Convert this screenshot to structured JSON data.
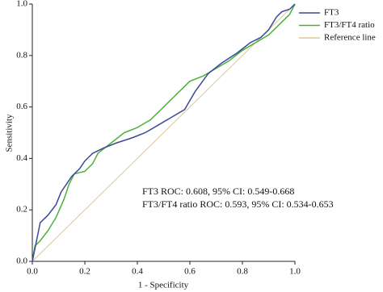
{
  "chart_data": {
    "type": "line",
    "xlabel": "1 - Specificity",
    "ylabel": "Sensitivity",
    "annotations": [
      "FT3 ROC: 0.608, 95% CI: 0.549-0.668",
      "FT3/FT4 ratio ROC: 0.593, 95% CI: 0.534-0.653"
    ],
    "xlim": [
      0,
      1
    ],
    "ylim": [
      0,
      1
    ],
    "xticks": [
      {
        "value": 0,
        "label": "0.0"
      },
      {
        "value": 0.2,
        "label": "0.2"
      },
      {
        "value": 0.4,
        "label": "0.4"
      },
      {
        "value": 0.6,
        "label": "0.6"
      },
      {
        "value": 0.8,
        "label": "0.8"
      },
      {
        "value": 1,
        "label": "1.0"
      }
    ],
    "yticks": [
      {
        "value": 0,
        "label": "0.0"
      },
      {
        "value": 0.2,
        "label": "0.2"
      },
      {
        "value": 0.4,
        "label": "0.4"
      },
      {
        "value": 0.6,
        "label": "0.6"
      },
      {
        "value": 0.8,
        "label": "0.8"
      },
      {
        "value": 1,
        "label": "1.0"
      }
    ],
    "legend": "top-right",
    "series": [
      {
        "name": "FT3",
        "color": "#3a4a9a",
        "x": [
          0,
          0.01,
          0.02,
          0.03,
          0.06,
          0.09,
          0.11,
          0.13,
          0.15,
          0.18,
          0.2,
          0.23,
          0.27,
          0.32,
          0.38,
          0.43,
          0.48,
          0.53,
          0.58,
          0.62,
          0.67,
          0.72,
          0.78,
          0.83,
          0.87,
          0.9,
          0.93,
          0.95,
          0.98,
          1
        ],
        "values": [
          0,
          0.05,
          0.1,
          0.15,
          0.18,
          0.22,
          0.27,
          0.3,
          0.33,
          0.36,
          0.39,
          0.42,
          0.44,
          0.46,
          0.48,
          0.5,
          0.53,
          0.56,
          0.59,
          0.66,
          0.73,
          0.77,
          0.81,
          0.85,
          0.87,
          0.9,
          0.95,
          0.97,
          0.98,
          1
        ]
      },
      {
        "name": "FT3/FT4 ratio",
        "color": "#4caf3a",
        "x": [
          0,
          0.01,
          0.03,
          0.06,
          0.09,
          0.12,
          0.14,
          0.16,
          0.2,
          0.23,
          0.25,
          0.3,
          0.35,
          0.4,
          0.45,
          0.5,
          0.55,
          0.6,
          0.65,
          0.7,
          0.75,
          0.8,
          0.85,
          0.9,
          0.95,
          0.98,
          1
        ],
        "values": [
          0,
          0.06,
          0.08,
          0.12,
          0.17,
          0.24,
          0.3,
          0.34,
          0.35,
          0.38,
          0.42,
          0.46,
          0.5,
          0.52,
          0.55,
          0.6,
          0.65,
          0.7,
          0.72,
          0.75,
          0.78,
          0.82,
          0.85,
          0.88,
          0.93,
          0.96,
          1
        ]
      },
      {
        "name": "Reference line",
        "color": "#d8c89a",
        "x": [
          0,
          1
        ],
        "values": [
          0,
          1
        ]
      }
    ]
  }
}
